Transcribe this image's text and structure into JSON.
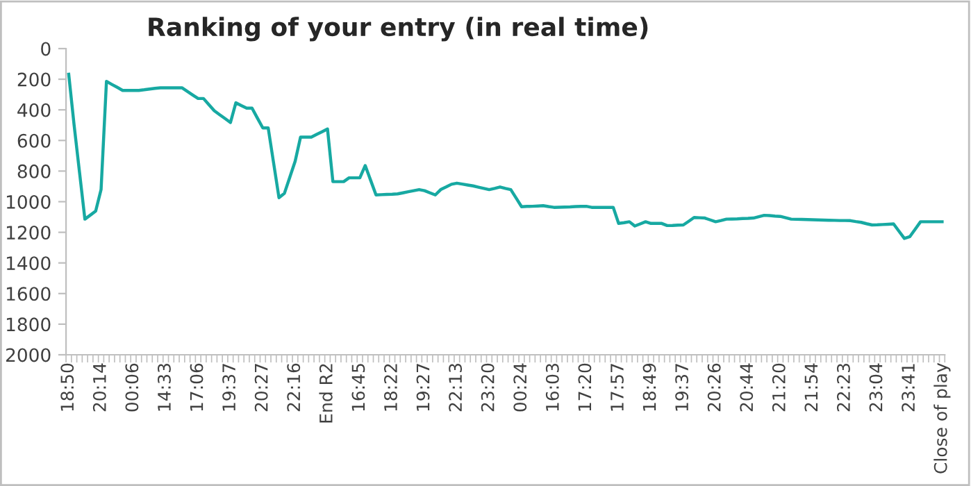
{
  "chart_data": {
    "type": "line",
    "title": "Ranking of your entry (in real time)",
    "categories": [
      "18:50",
      null,
      null,
      null,
      null,
      null,
      "20:14",
      null,
      null,
      null,
      null,
      null,
      "00:06",
      null,
      null,
      null,
      null,
      null,
      "14:33",
      null,
      null,
      null,
      null,
      null,
      "17:06",
      null,
      null,
      null,
      null,
      null,
      "19:37",
      null,
      null,
      null,
      null,
      null,
      "20:27",
      null,
      null,
      null,
      null,
      null,
      "22:16",
      null,
      null,
      null,
      null,
      null,
      "End R2",
      null,
      null,
      null,
      null,
      null,
      "16:45",
      null,
      null,
      null,
      null,
      null,
      "18:22",
      null,
      null,
      null,
      null,
      null,
      "19:27",
      null,
      null,
      null,
      null,
      null,
      "22:13",
      null,
      null,
      null,
      null,
      null,
      "23:20",
      null,
      null,
      null,
      null,
      null,
      "00:24",
      null,
      null,
      null,
      null,
      null,
      "16:03",
      null,
      null,
      null,
      null,
      null,
      "17:20",
      null,
      null,
      null,
      null,
      null,
      "17:57",
      null,
      null,
      null,
      null,
      null,
      "18:49",
      null,
      null,
      null,
      null,
      null,
      "19:37",
      null,
      null,
      null,
      null,
      null,
      "20:26",
      null,
      null,
      null,
      null,
      null,
      "20:44",
      null,
      null,
      null,
      null,
      null,
      "21:20",
      null,
      null,
      null,
      null,
      null,
      "21:54",
      null,
      null,
      null,
      null,
      null,
      "22:23",
      null,
      null,
      null,
      null,
      null,
      "23:04",
      null,
      null,
      null,
      null,
      null,
      "23:41",
      null,
      null,
      null,
      null,
      null,
      "Close of play"
    ],
    "series": [
      {
        "color": "#17a9a2",
        "values": [
          168,
          500,
          807,
          1114,
          1088,
          1061,
          921,
          214,
          234,
          253,
          273,
          273,
          273,
          273,
          269,
          264,
          260,
          256,
          256,
          256,
          256,
          256,
          279,
          303,
          326,
          326,
          366,
          406,
          432,
          457,
          483,
          354,
          372,
          389,
          389,
          454,
          518,
          518,
          746,
          974,
          946,
          841,
          736,
          578,
          578,
          578,
          560,
          543,
          525,
          869,
          869,
          869,
          844,
          844,
          844,
          764,
          860,
          956,
          954,
          952,
          951,
          949,
          942,
          935,
          928,
          921,
          928,
          942,
          956,
          921,
          904,
          886,
          879,
          885,
          891,
          897,
          905,
          913,
          921,
          913,
          904,
          913,
          921,
          977,
          1033,
          1031,
          1030,
          1028,
          1026,
          1032,
          1037,
          1036,
          1035,
          1034,
          1032,
          1031,
          1030,
          1037,
          1037,
          1037,
          1037,
          1037,
          1142,
          1137,
          1131,
          1159,
          1145,
          1131,
          1142,
          1142,
          1142,
          1156,
          1155,
          1153,
          1152,
          1128,
          1103,
          1105,
          1107,
          1119,
          1131,
          1123,
          1114,
          1113,
          1112,
          1110,
          1109,
          1107,
          1098,
          1089,
          1091,
          1094,
          1096,
          1105,
          1114,
          1115,
          1116,
          1117,
          1118,
          1119,
          1120,
          1121,
          1122,
          1123,
          1123,
          1124,
          1130,
          1135,
          1144,
          1152,
          1151,
          1149,
          1147,
          1145,
          1193,
          1240,
          1229,
          1180,
          1131,
          1131,
          1131,
          1131,
          1131
        ]
      }
    ],
    "ylim": [
      2000,
      0
    ],
    "yticks": [
      0,
      200,
      400,
      600,
      800,
      1000,
      1200,
      1400,
      1600,
      1800,
      2000
    ],
    "grid": false,
    "line_style": "solid",
    "marker": "none"
  }
}
